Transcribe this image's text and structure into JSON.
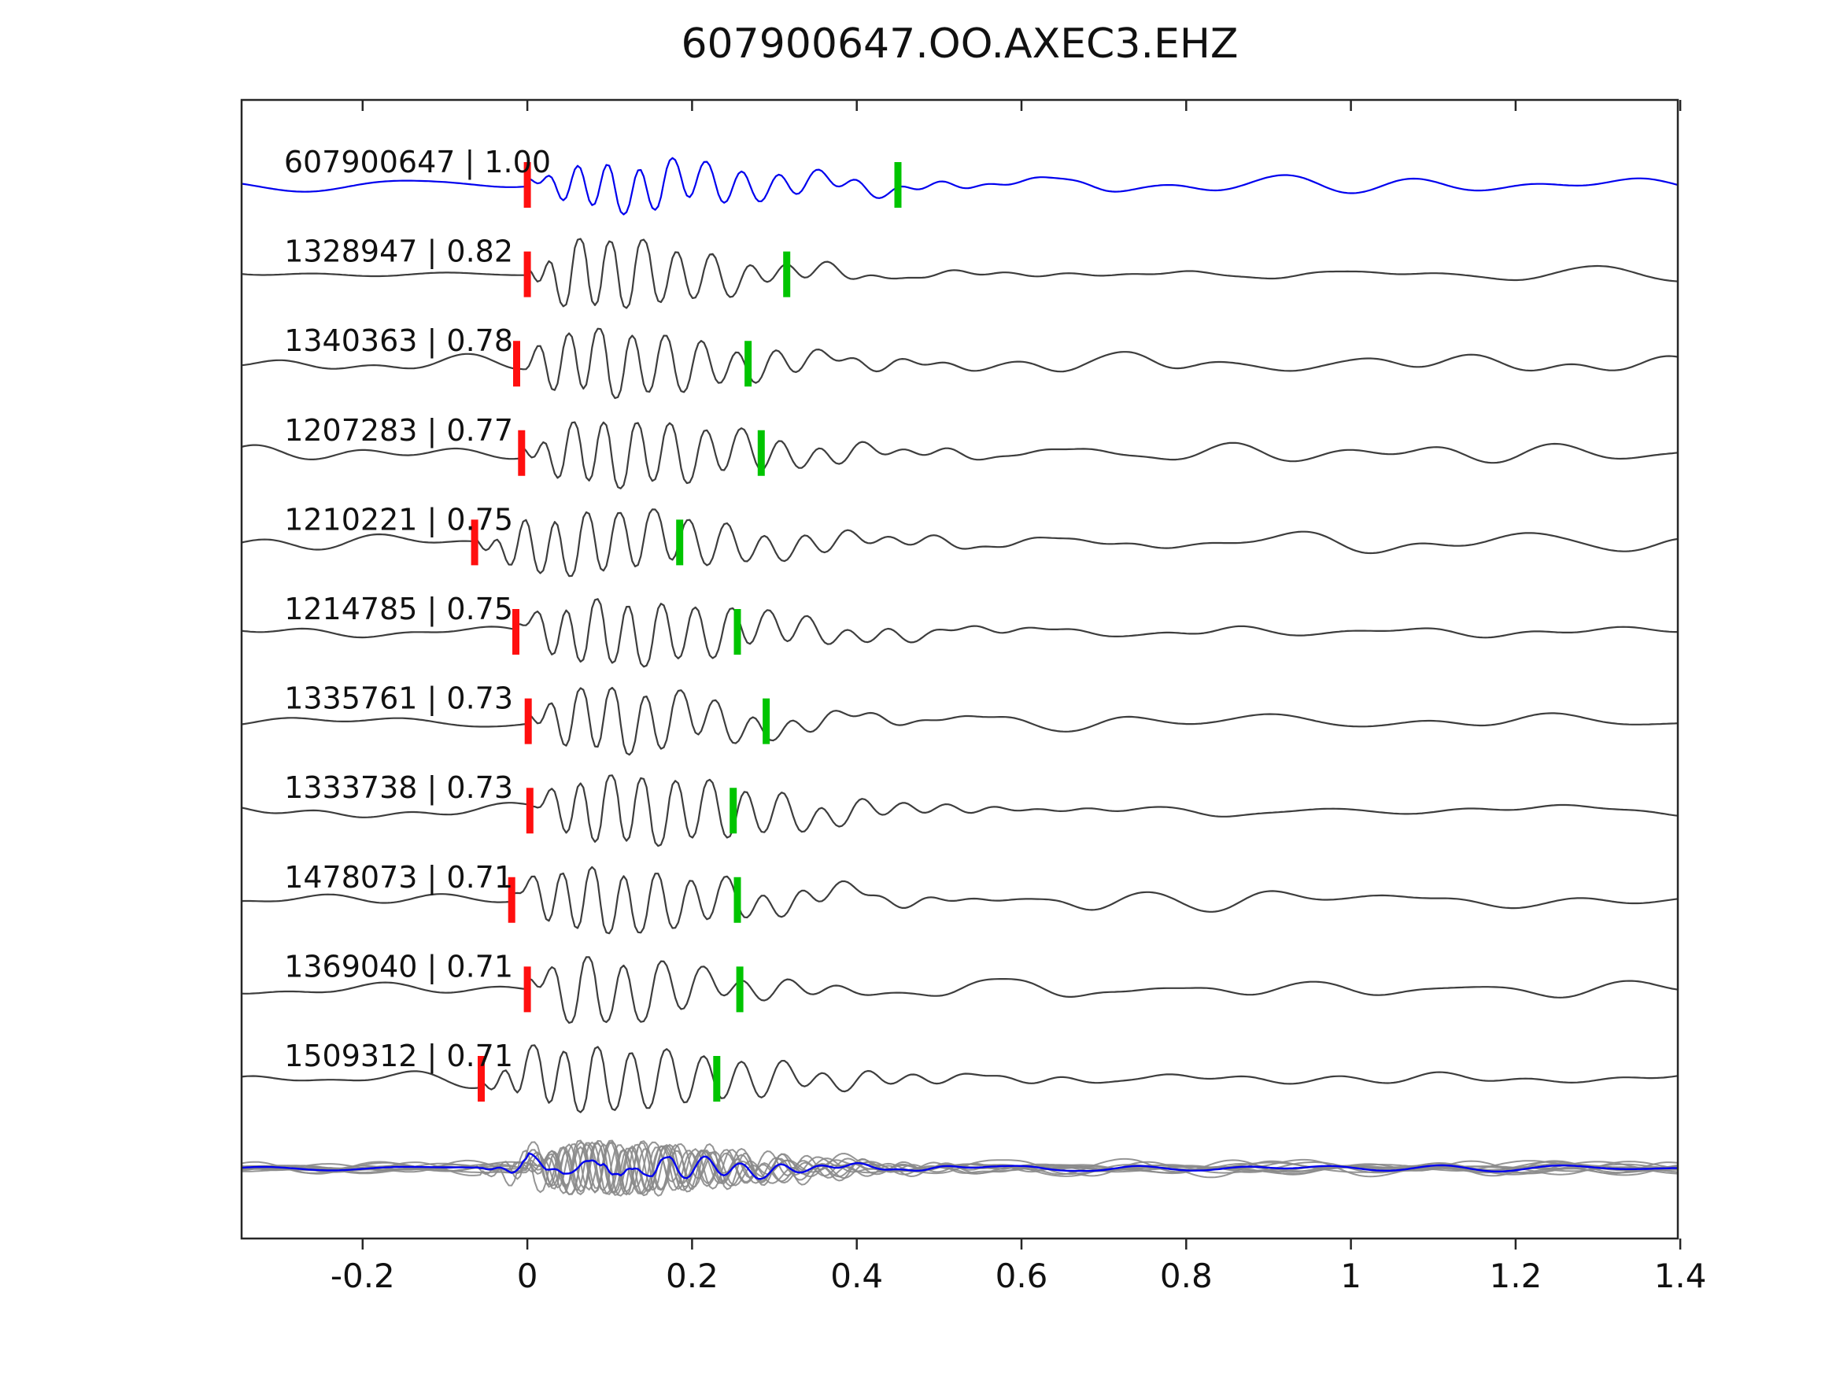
{
  "chart_data": {
    "type": "line",
    "title": "607900647.OO.AXEC3.EHZ",
    "xlabel": "",
    "ylabel": "",
    "xlim": [
      -0.347,
      1.397
    ],
    "x_ticks": [
      -0.2,
      0,
      0.2,
      0.4,
      0.6,
      0.8,
      1,
      1.2,
      1.4
    ],
    "x_tick_labels": [
      "-0.2",
      "0",
      "0.2",
      "0.4",
      "0.6",
      "0.8",
      "1",
      "1.2",
      "1.4"
    ],
    "grid": false,
    "legend": "none",
    "traces": [
      {
        "id": "607900647",
        "correlation": 1.0,
        "label": "607900647 | 1.00",
        "color": "#0000ee",
        "red_pick": 0.0,
        "green_pick": 0.45
      },
      {
        "id": "1328947",
        "correlation": 0.82,
        "label": "1328947 | 0.82",
        "color": "#3d3d3d",
        "red_pick": 0.0,
        "green_pick": 0.315
      },
      {
        "id": "1340363",
        "correlation": 0.78,
        "label": "1340363 | 0.78",
        "color": "#3d3d3d",
        "red_pick": -0.013,
        "green_pick": 0.268
      },
      {
        "id": "1207283",
        "correlation": 0.77,
        "label": "1207283 | 0.77",
        "color": "#3d3d3d",
        "red_pick": -0.007,
        "green_pick": 0.284
      },
      {
        "id": "1210221",
        "correlation": 0.75,
        "label": "1210221 | 0.75",
        "color": "#3d3d3d",
        "red_pick": -0.064,
        "green_pick": 0.185
      },
      {
        "id": "1214785",
        "correlation": 0.75,
        "label": "1214785 | 0.75",
        "color": "#3d3d3d",
        "red_pick": -0.014,
        "green_pick": 0.255
      },
      {
        "id": "1335761",
        "correlation": 0.73,
        "label": "1335761 | 0.73",
        "color": "#3d3d3d",
        "red_pick": 0.001,
        "green_pick": 0.29
      },
      {
        "id": "1333738",
        "correlation": 0.73,
        "label": "1333738 | 0.73",
        "color": "#3d3d3d",
        "red_pick": 0.003,
        "green_pick": 0.25
      },
      {
        "id": "1478073",
        "correlation": 0.71,
        "label": "1478073 | 0.71",
        "color": "#3d3d3d",
        "red_pick": -0.019,
        "green_pick": 0.255
      },
      {
        "id": "1369040",
        "correlation": 0.71,
        "label": "1369040 | 0.71",
        "color": "#3d3d3d",
        "red_pick": 0.0,
        "green_pick": 0.258
      },
      {
        "id": "1509312",
        "correlation": 0.71,
        "label": "1509312 | 0.71",
        "color": "#3d3d3d",
        "red_pick": -0.056,
        "green_pick": 0.23
      }
    ],
    "overlay_row": {
      "member_color": "#8a8a8a",
      "stack_color": "#0000ee"
    },
    "pick_colors": {
      "red": "#ff0f0f",
      "green": "#00c400"
    },
    "frame_color": "#262626",
    "text_color": "#111111"
  }
}
